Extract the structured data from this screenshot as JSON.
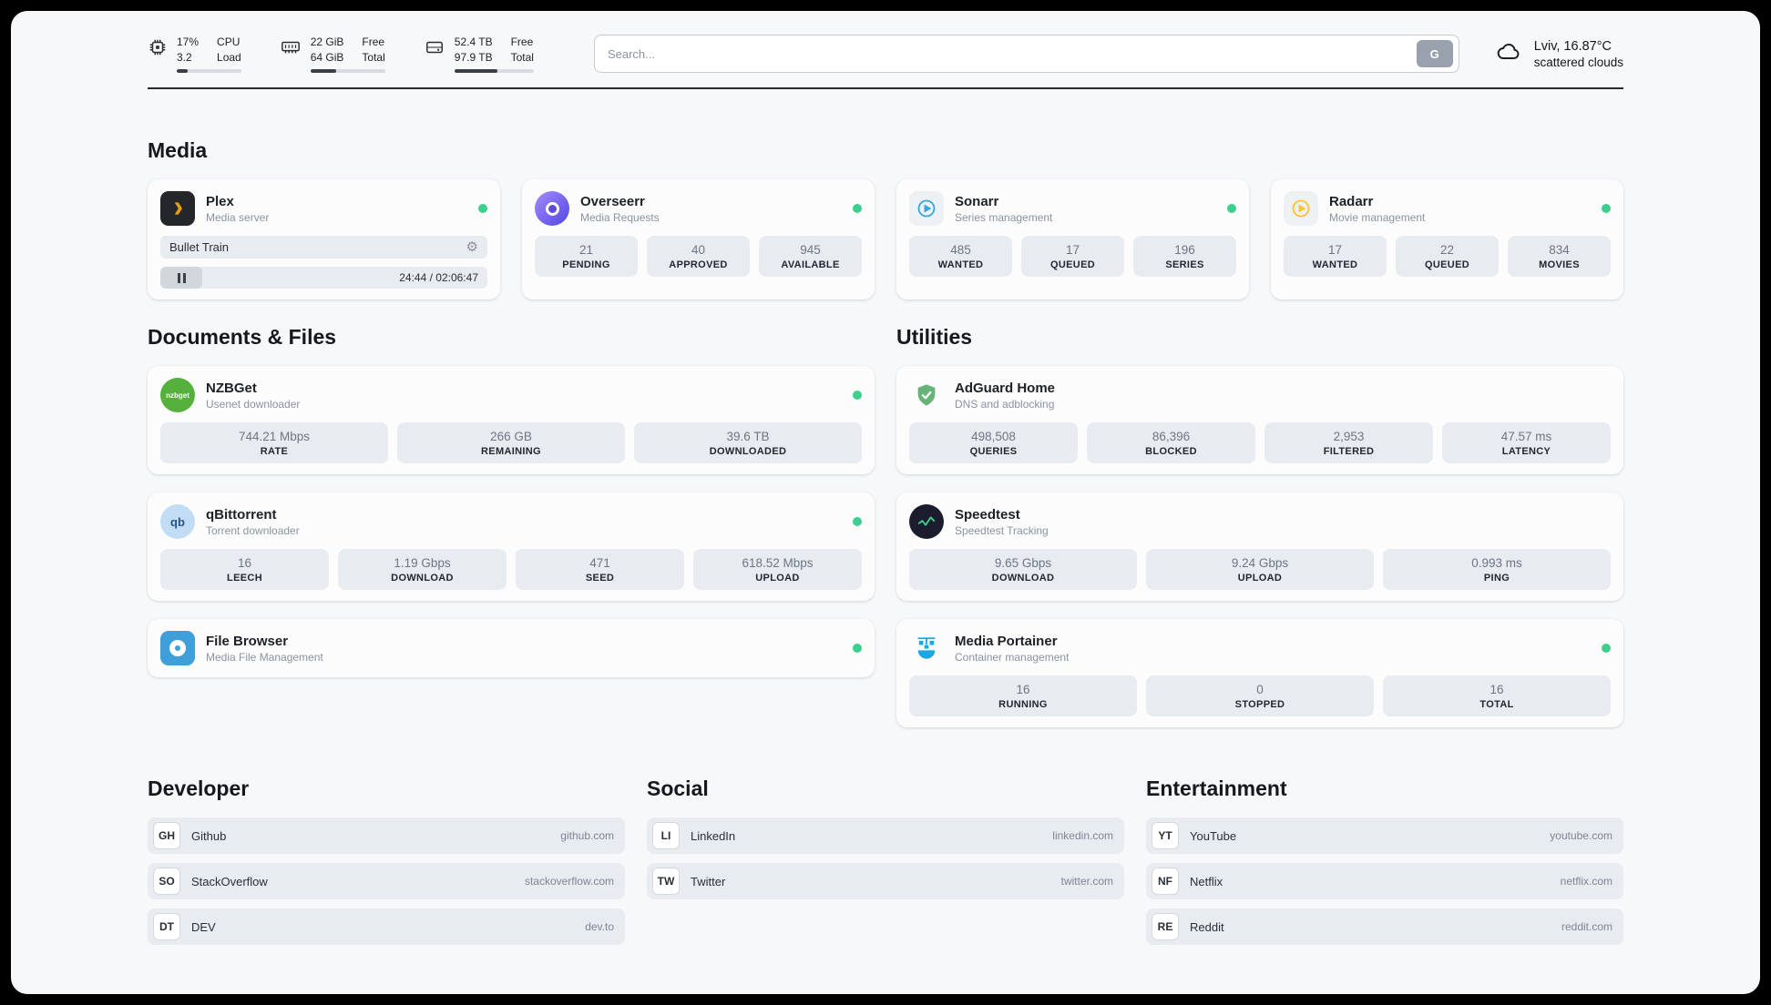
{
  "topbar": {
    "cpu": {
      "value1": "17%",
      "label1": "CPU",
      "value2": "3.2",
      "label2": "Load",
      "progress_percent": 17
    },
    "memory": {
      "value1": "22 GiB",
      "label1": "Free",
      "value2": "64 GiB",
      "label2": "Total",
      "progress_percent": 34
    },
    "disk": {
      "value1": "52.4 TB",
      "label1": "Free",
      "value2": "97.9 TB",
      "label2": "Total",
      "progress_percent": 54
    },
    "search": {
      "placeholder": "Search...",
      "engine_label": "G"
    },
    "weather": {
      "location": "Lviv, 16.87°C",
      "condition": "scattered clouds"
    }
  },
  "sections": {
    "media": {
      "heading": "Media",
      "plex": {
        "name": "Plex",
        "subtitle": "Media server",
        "now_playing": "Bullet Train",
        "time": "24:44 / 02:06:47"
      },
      "overseerr": {
        "name": "Overseerr",
        "subtitle": "Media Requests",
        "stats": [
          {
            "value": "21",
            "label": "PENDING"
          },
          {
            "value": "40",
            "label": "APPROVED"
          },
          {
            "value": "945",
            "label": "AVAILABLE"
          }
        ]
      },
      "sonarr": {
        "name": "Sonarr",
        "subtitle": "Series management",
        "stats": [
          {
            "value": "485",
            "label": "WANTED"
          },
          {
            "value": "17",
            "label": "QUEUED"
          },
          {
            "value": "196",
            "label": "SERIES"
          }
        ]
      },
      "radarr": {
        "name": "Radarr",
        "subtitle": "Movie management",
        "stats": [
          {
            "value": "17",
            "label": "WANTED"
          },
          {
            "value": "22",
            "label": "QUEUED"
          },
          {
            "value": "834",
            "label": "MOVIES"
          }
        ]
      }
    },
    "documents": {
      "heading": "Documents & Files",
      "nzbget": {
        "name": "NZBGet",
        "subtitle": "Usenet downloader",
        "stats": [
          {
            "value": "744.21 Mbps",
            "label": "RATE"
          },
          {
            "value": "266 GB",
            "label": "REMAINING"
          },
          {
            "value": "39.6 TB",
            "label": "DOWNLOADED"
          }
        ]
      },
      "qbittorrent": {
        "name": "qBittorrent",
        "subtitle": "Torrent downloader",
        "stats": [
          {
            "value": "16",
            "label": "LEECH"
          },
          {
            "value": "1.19 Gbps",
            "label": "DOWNLOAD"
          },
          {
            "value": "471",
            "label": "SEED"
          },
          {
            "value": "618.52 Mbps",
            "label": "UPLOAD"
          }
        ]
      },
      "filebrowser": {
        "name": "File Browser",
        "subtitle": "Media File Management"
      }
    },
    "utilities": {
      "heading": "Utilities",
      "adguard": {
        "name": "AdGuard Home",
        "subtitle": "DNS and adblocking",
        "stats": [
          {
            "value": "498,508",
            "label": "QUERIES"
          },
          {
            "value": "86,396",
            "label": "BLOCKED"
          },
          {
            "value": "2,953",
            "label": "FILTERED"
          },
          {
            "value": "47.57 ms",
            "label": "LATENCY"
          }
        ]
      },
      "speedtest": {
        "name": "Speedtest",
        "subtitle": "Speedtest Tracking",
        "stats": [
          {
            "value": "9.65 Gbps",
            "label": "DOWNLOAD"
          },
          {
            "value": "9.24 Gbps",
            "label": "UPLOAD"
          },
          {
            "value": "0.993 ms",
            "label": "PING"
          }
        ]
      },
      "portainer": {
        "name": "Media Portainer",
        "subtitle": "Container management",
        "stats": [
          {
            "value": "16",
            "label": "RUNNING"
          },
          {
            "value": "0",
            "label": "STOPPED"
          },
          {
            "value": "16",
            "label": "TOTAL"
          }
        ]
      }
    },
    "bookmarks": {
      "developer": {
        "heading": "Developer",
        "items": [
          {
            "abbr": "GH",
            "name": "Github",
            "domain": "github.com"
          },
          {
            "abbr": "SO",
            "name": "StackOverflow",
            "domain": "stackoverflow.com"
          },
          {
            "abbr": "DT",
            "name": "DEV",
            "domain": "dev.to"
          }
        ]
      },
      "social": {
        "heading": "Social",
        "items": [
          {
            "abbr": "LI",
            "name": "LinkedIn",
            "domain": "linkedin.com"
          },
          {
            "abbr": "TW",
            "name": "Twitter",
            "domain": "twitter.com"
          }
        ]
      },
      "entertainment": {
        "heading": "Entertainment",
        "items": [
          {
            "abbr": "YT",
            "name": "YouTube",
            "domain": "youtube.com"
          },
          {
            "abbr": "NF",
            "name": "Netflix",
            "domain": "netflix.com"
          },
          {
            "abbr": "RE",
            "name": "Reddit",
            "domain": "reddit.com"
          }
        ]
      }
    }
  }
}
